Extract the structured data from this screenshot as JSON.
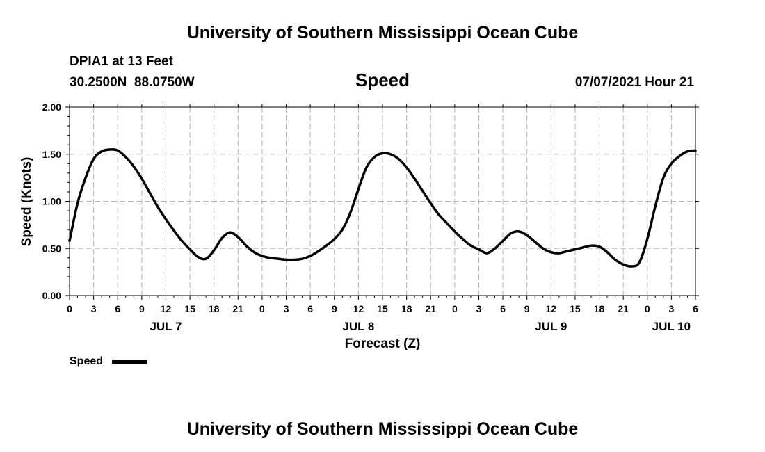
{
  "header": {
    "title": "University of Southern Mississippi Ocean Cube",
    "station": "DPIA1 at 13 Feet",
    "coords": "30.2500N  88.0750W",
    "variable": "Speed",
    "datetime": "07/07/2021 Hour 21"
  },
  "footer": {
    "title": "University of Southern Mississippi Ocean Cube"
  },
  "colors": {
    "line": "#000000",
    "grid": "#b4b4b4",
    "background": "#ffffff"
  },
  "chart_data": {
    "type": "line",
    "ylabel": "Speed (Knots)",
    "xlabel": "Forecast (Z)",
    "ylim": [
      0,
      2
    ],
    "xlim": [
      0,
      78
    ],
    "grid": true,
    "legend_position": "bottom-left",
    "y_ticks": [
      {
        "value": 0,
        "label": "0.00"
      },
      {
        "value": 0.5,
        "label": "0.50"
      },
      {
        "value": 1,
        "label": "1.00"
      },
      {
        "value": 1.5,
        "label": "1.50"
      },
      {
        "value": 2,
        "label": "2.00"
      }
    ],
    "x_ticks": [
      {
        "hour": 0,
        "label": "0"
      },
      {
        "hour": 3,
        "label": "3"
      },
      {
        "hour": 6,
        "label": "6"
      },
      {
        "hour": 9,
        "label": "9"
      },
      {
        "hour": 12,
        "label": "12"
      },
      {
        "hour": 15,
        "label": "15"
      },
      {
        "hour": 18,
        "label": "18"
      },
      {
        "hour": 21,
        "label": "21"
      },
      {
        "hour": 24,
        "label": "0"
      },
      {
        "hour": 27,
        "label": "3"
      },
      {
        "hour": 30,
        "label": "6"
      },
      {
        "hour": 33,
        "label": "9"
      },
      {
        "hour": 36,
        "label": "12"
      },
      {
        "hour": 39,
        "label": "15"
      },
      {
        "hour": 42,
        "label": "18"
      },
      {
        "hour": 45,
        "label": "21"
      },
      {
        "hour": 48,
        "label": "0"
      },
      {
        "hour": 51,
        "label": "3"
      },
      {
        "hour": 54,
        "label": "6"
      },
      {
        "hour": 57,
        "label": "9"
      },
      {
        "hour": 60,
        "label": "12"
      },
      {
        "hour": 63,
        "label": "15"
      },
      {
        "hour": 66,
        "label": "18"
      },
      {
        "hour": 69,
        "label": "21"
      },
      {
        "hour": 72,
        "label": "0"
      },
      {
        "hour": 75,
        "label": "3"
      },
      {
        "hour": 78,
        "label": "6"
      }
    ],
    "day_labels": [
      {
        "hour": 12,
        "label": "JUL 7"
      },
      {
        "hour": 36,
        "label": "JUL 8"
      },
      {
        "hour": 60,
        "label": "JUL 9"
      },
      {
        "hour": 75,
        "label": "JUL 10"
      }
    ],
    "series": [
      {
        "name": "Speed",
        "x": [
          0,
          1,
          2,
          3,
          4,
          5,
          6,
          7,
          8,
          9,
          10,
          11,
          12,
          13,
          14,
          15,
          16,
          17,
          18,
          19,
          20,
          21,
          22,
          23,
          24,
          25,
          26,
          27,
          28,
          29,
          30,
          31,
          32,
          33,
          34,
          35,
          36,
          37,
          38,
          39,
          40,
          41,
          42,
          43,
          44,
          45,
          46,
          47,
          48,
          49,
          50,
          51,
          52,
          53,
          54,
          55,
          56,
          57,
          58,
          59,
          60,
          61,
          62,
          63,
          64,
          65,
          66,
          67,
          68,
          69,
          70,
          71,
          72,
          73,
          74,
          75,
          76,
          77,
          78
        ],
        "values": [
          0.58,
          0.98,
          1.25,
          1.45,
          1.53,
          1.55,
          1.54,
          1.47,
          1.37,
          1.24,
          1.09,
          0.94,
          0.81,
          0.69,
          0.58,
          0.49,
          0.41,
          0.39,
          0.48,
          0.61,
          0.67,
          0.62,
          0.53,
          0.46,
          0.42,
          0.4,
          0.39,
          0.38,
          0.38,
          0.39,
          0.42,
          0.47,
          0.53,
          0.6,
          0.7,
          0.88,
          1.13,
          1.36,
          1.47,
          1.51,
          1.5,
          1.45,
          1.36,
          1.24,
          1.11,
          0.98,
          0.86,
          0.77,
          0.68,
          0.6,
          0.53,
          0.49,
          0.45,
          0.5,
          0.58,
          0.66,
          0.68,
          0.64,
          0.57,
          0.5,
          0.46,
          0.45,
          0.47,
          0.49,
          0.51,
          0.53,
          0.52,
          0.46,
          0.38,
          0.33,
          0.31,
          0.35,
          0.6,
          0.95,
          1.25,
          1.4,
          1.48,
          1.53,
          1.54
        ]
      }
    ]
  }
}
